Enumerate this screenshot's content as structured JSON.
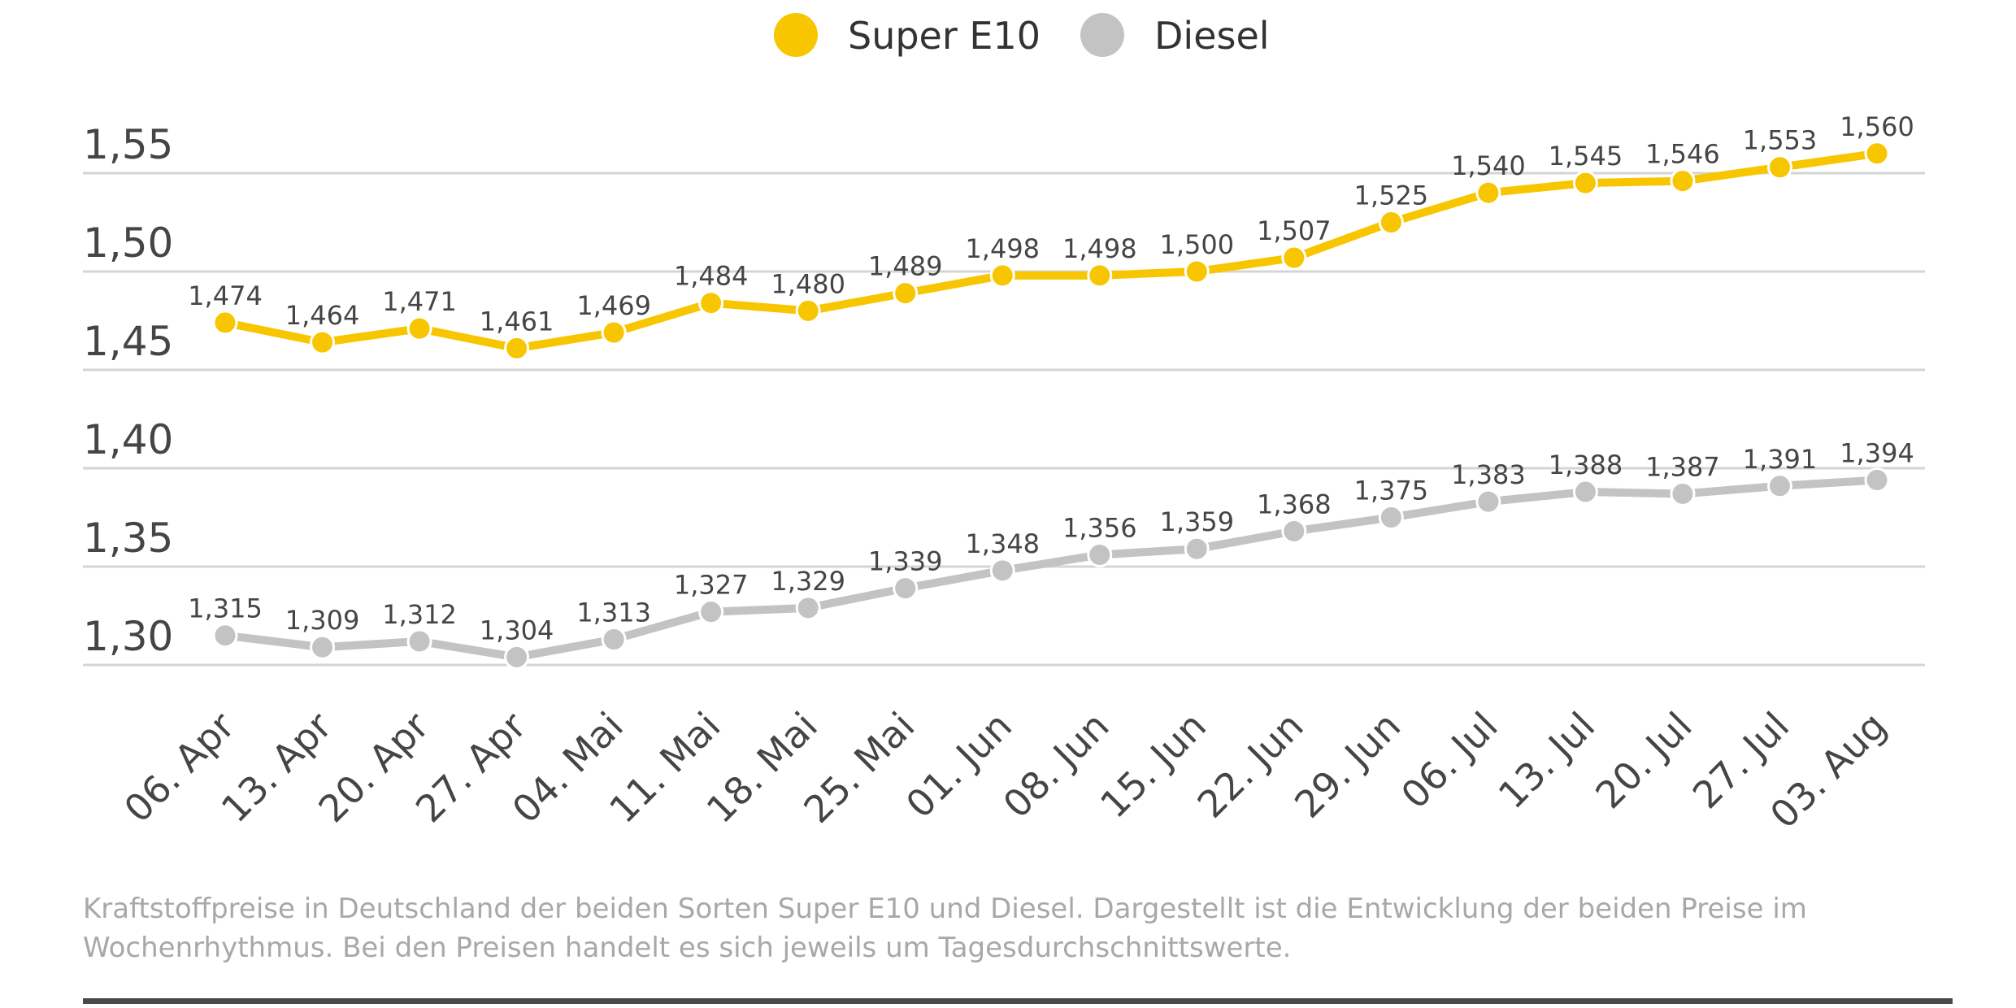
{
  "chart_data": {
    "type": "line",
    "title": "",
    "xlabel": "",
    "ylabel": "",
    "ylim": [
      1.3,
      1.55
    ],
    "yticks": [
      "1,30",
      "1,35",
      "1,40",
      "1,45",
      "1,50",
      "1,55"
    ],
    "ytick_values": [
      1.3,
      1.35,
      1.4,
      1.45,
      1.5,
      1.55
    ],
    "grid": true,
    "legend_position": "top-center",
    "categories": [
      "06. Apr",
      "13. Apr",
      "20. Apr",
      "27. Apr",
      "04. Mai",
      "11. Mai",
      "18. Mai",
      "25. Mai",
      "01. Jun",
      "08. Jun",
      "15. Jun",
      "22. Jun",
      "29. Jun",
      "06. Jul",
      "13. Jul",
      "20. Jul",
      "27. Jul",
      "03. Aug"
    ],
    "series": [
      {
        "name": "Super E10",
        "color": "#f7c600",
        "values": [
          1.474,
          1.464,
          1.471,
          1.461,
          1.469,
          1.484,
          1.48,
          1.489,
          1.498,
          1.498,
          1.5,
          1.507,
          1.525,
          1.54,
          1.545,
          1.546,
          1.553,
          1.56
        ],
        "labels": [
          "1,474",
          "1,464",
          "1,471",
          "1,461",
          "1,469",
          "1,484",
          "1,480",
          "1,489",
          "1,498",
          "1,498",
          "1,500",
          "1,507",
          "1,525",
          "1,540",
          "1,545",
          "1,546",
          "1,553",
          "1,560"
        ]
      },
      {
        "name": "Diesel",
        "color": "#c3c3c3",
        "values": [
          1.315,
          1.309,
          1.312,
          1.304,
          1.313,
          1.327,
          1.329,
          1.339,
          1.348,
          1.356,
          1.359,
          1.368,
          1.375,
          1.383,
          1.388,
          1.387,
          1.391,
          1.394
        ],
        "labels": [
          "1,315",
          "1,309",
          "1,312",
          "1,304",
          "1,313",
          "1,327",
          "1,329",
          "1,339",
          "1,348",
          "1,356",
          "1,359",
          "1,368",
          "1,375",
          "1,383",
          "1,388",
          "1,387",
          "1,391",
          "1,394"
        ]
      }
    ]
  },
  "caption": "Kraftstoffpreise in Deutschland der beiden Sorten Super E10 und Diesel. Dargestellt ist die Entwicklung der beiden Preise im Wochenrhythmus. Bei den Preisen handelt es sich jeweils um Tagesdurchschnittswerte.",
  "colors": {
    "grid": "#d4d4d4",
    "text": "#454545",
    "caption": "#a8a8a8",
    "rule": "#4a4a4a"
  }
}
